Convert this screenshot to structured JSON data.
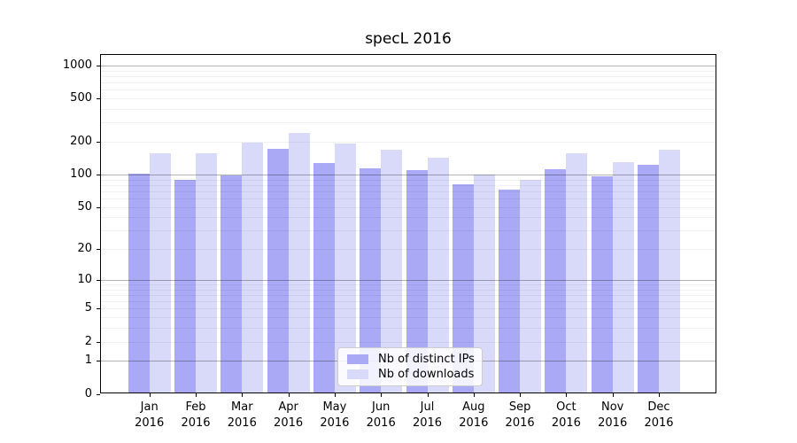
{
  "chart_data": {
    "type": "bar",
    "title": "specL 2016",
    "categories": [
      "Jan",
      "Feb",
      "Mar",
      "Apr",
      "May",
      "Jun",
      "Jul",
      "Aug",
      "Sep",
      "Oct",
      "Nov",
      "Dec"
    ],
    "x_year": "2016",
    "series": [
      {
        "name": "Nb of distinct IPs",
        "color": "#a9a9f5",
        "values": [
          100,
          87,
          95,
          167,
          124,
          110,
          106,
          79,
          71,
          108,
          94,
          119
        ]
      },
      {
        "name": "Nb of downloads",
        "color": "#d9d9fa",
        "values": [
          152,
          152,
          190,
          236,
          187,
          165,
          140,
          97,
          87,
          152,
          126,
          164
        ]
      }
    ],
    "y_ticks": [
      0,
      1,
      2,
      5,
      10,
      20,
      50,
      100,
      200,
      500,
      1000
    ],
    "y_scale": "log10(1+y)",
    "ylim": [
      0,
      1250
    ],
    "xlabel": "",
    "ylabel": "",
    "grid": {
      "horizontal": true,
      "major_at": "powers of 10",
      "minor_at": "2-9 per decade"
    },
    "legend": {
      "position": "lower center"
    }
  }
}
